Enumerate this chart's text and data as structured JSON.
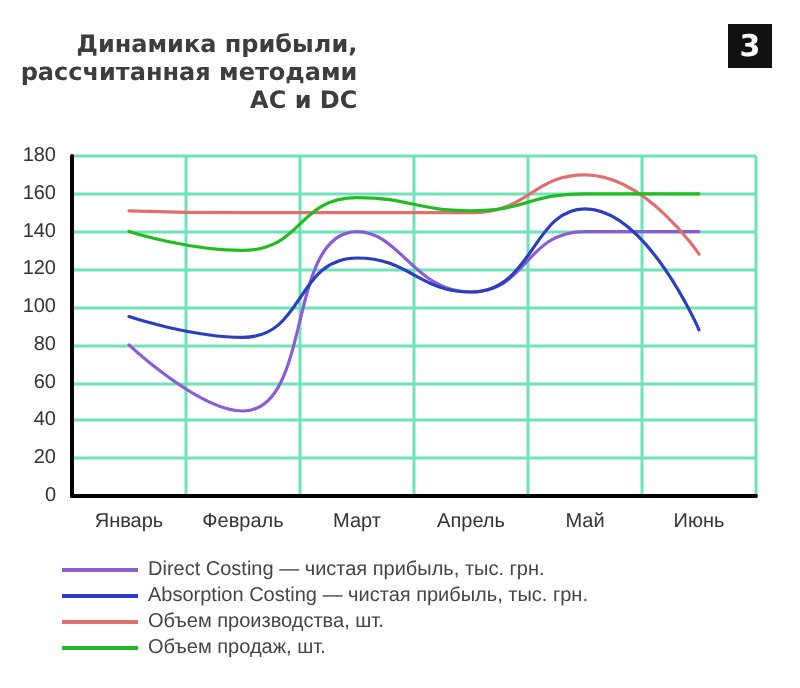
{
  "chart_data": {
    "type": "line",
    "title": "Динамика прибыли,\nрассчитанная методами\nAC и DC",
    "annotations": [
      "3"
    ],
    "categories": [
      "Январь",
      "Февраль",
      "Март",
      "Апрель",
      "Май",
      "Июнь"
    ],
    "series": [
      {
        "name": "Direct Costing — чистая прибыль, тыс. грн.",
        "color": "#8a5cd6",
        "values": [
          80,
          45,
          140,
          108,
          140,
          140
        ]
      },
      {
        "name": "Absorption Costing — чистая прибыль, тыс. грн.",
        "color": "#2a3fbf",
        "values": [
          95,
          84,
          126,
          108,
          152,
          88
        ]
      },
      {
        "name": "Объем производства, шт.",
        "color": "#e07070",
        "values": [
          151,
          150,
          150,
          150,
          170,
          128
        ]
      },
      {
        "name": "Объем продаж, шт.",
        "color": "#22bb22",
        "values": [
          140,
          130,
          158,
          151,
          160,
          160
        ]
      }
    ],
    "ylim": [
      0,
      180
    ],
    "yticks": [
      0,
      20,
      40,
      60,
      80,
      100,
      120,
      140,
      160,
      180
    ],
    "grid": true,
    "legend": "bottom",
    "marker": "none",
    "line_style": "solid"
  }
}
